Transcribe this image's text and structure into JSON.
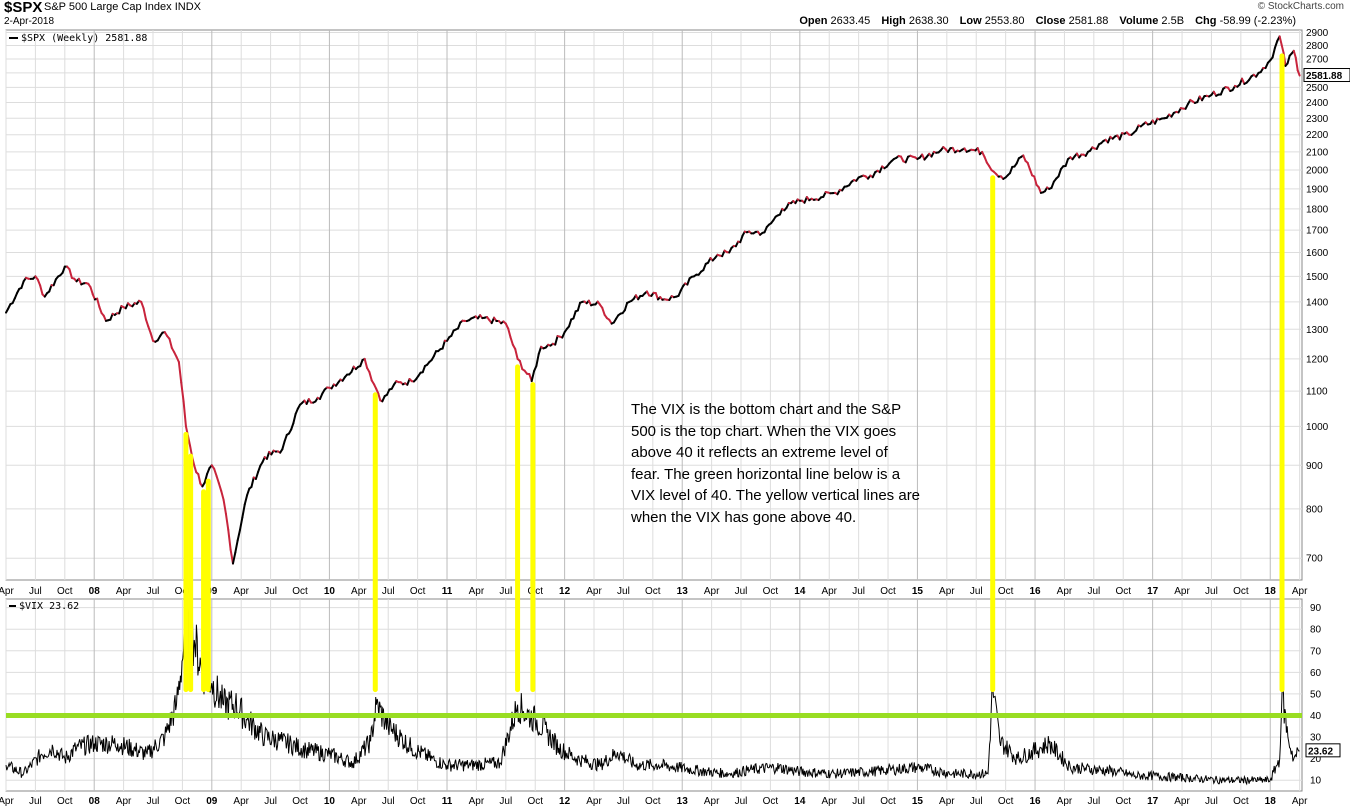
{
  "header": {
    "symbol": "$SPX",
    "name": "S&P 500 Large Cap Index",
    "exchange": "INDX",
    "date": "2-Apr-2018",
    "brand": "© StockCharts.com",
    "open_label": "Open",
    "open": "2633.45",
    "high_label": "High",
    "high": "2638.30",
    "low_label": "Low",
    "low": "2553.80",
    "close_label": "Close",
    "close": "2581.88",
    "volume_label": "Volume",
    "volume": "2.5B",
    "chg_label": "Chg",
    "chg": "-58.99 (-2.23%)"
  },
  "annotation": "The VIX is the bottom chart and the S&P 500 is the top chart.  When the VIX  goes above 40 it reflects an extreme level of fear. The green horizontal line below is a VIX level of 40. The yellow vertical lines are when the VIX has gone above 40.",
  "colors": {
    "up": "#000000",
    "down": "#c8243c",
    "yellow": "#ffff00",
    "green": "#99dd22",
    "grid": "#dddddd"
  },
  "chart_data": [
    {
      "type": "line",
      "legend": "$SPX (Weekly) 2581.88",
      "last_value": "2581.88",
      "scale": "log",
      "ylim": [
        660,
        2920
      ],
      "y_ticks": [
        700,
        800,
        900,
        1000,
        1100,
        1200,
        1300,
        1400,
        1500,
        1600,
        1700,
        1800,
        1900,
        2000,
        2100,
        2200,
        2300,
        2400,
        2500,
        2600,
        2700,
        2800,
        2900
      ],
      "x": [
        2007.25,
        2007.4,
        2007.5,
        2007.58,
        2007.75,
        2007.85,
        2007.95,
        2008.1,
        2008.25,
        2008.4,
        2008.5,
        2008.6,
        2008.72,
        2008.78,
        2008.85,
        2008.92,
        2009.0,
        2009.1,
        2009.18,
        2009.3,
        2009.45,
        2009.6,
        2009.75,
        2009.9,
        2010.0,
        2010.15,
        2010.3,
        2010.38,
        2010.45,
        2010.55,
        2010.7,
        2010.85,
        2011.0,
        2011.15,
        2011.3,
        2011.5,
        2011.6,
        2011.72,
        2011.8,
        2011.9,
        2012.0,
        2012.15,
        2012.3,
        2012.4,
        2012.55,
        2012.7,
        2012.85,
        2012.95,
        2013.1,
        2013.3,
        2013.4,
        2013.55,
        2013.7,
        2013.85,
        2014.0,
        2014.1,
        2014.3,
        2014.5,
        2014.6,
        2014.8,
        2015.0,
        2015.2,
        2015.4,
        2015.55,
        2015.65,
        2015.75,
        2015.9,
        2016.05,
        2016.12,
        2016.3,
        2016.45,
        2016.6,
        2016.8,
        2016.9,
        2017.1,
        2017.3,
        2017.5,
        2017.7,
        2017.9,
        2018.0,
        2018.08,
        2018.13,
        2018.2,
        2018.25
      ],
      "values": [
        1360,
        1480,
        1500,
        1420,
        1540,
        1480,
        1470,
        1330,
        1380,
        1400,
        1260,
        1290,
        1190,
        1000,
        900,
        850,
        900,
        820,
        690,
        830,
        920,
        940,
        1060,
        1080,
        1110,
        1150,
        1200,
        1120,
        1070,
        1120,
        1130,
        1190,
        1260,
        1330,
        1340,
        1320,
        1200,
        1130,
        1240,
        1250,
        1290,
        1400,
        1390,
        1320,
        1400,
        1440,
        1410,
        1420,
        1500,
        1590,
        1600,
        1690,
        1690,
        1800,
        1840,
        1850,
        1880,
        1960,
        1970,
        2060,
        2060,
        2110,
        2120,
        2100,
        1990,
        1960,
        2080,
        1880,
        1900,
        2070,
        2100,
        2170,
        2200,
        2250,
        2300,
        2390,
        2450,
        2510,
        2600,
        2690,
        2870,
        2650,
        2760,
        2581.88
      ]
    },
    {
      "type": "line",
      "legend": "$VIX 23.62",
      "last_value": "23.62",
      "ylim": [
        5,
        94
      ],
      "y_ticks": [
        10,
        20,
        30,
        40,
        50,
        60,
        70,
        80,
        90
      ],
      "threshold": 40,
      "x": [
        2007.25,
        2007.4,
        2007.55,
        2007.65,
        2007.75,
        2007.85,
        2008.0,
        2008.2,
        2008.45,
        2008.6,
        2008.7,
        2008.78,
        2008.85,
        2008.92,
        2009.0,
        2009.1,
        2009.2,
        2009.3,
        2009.45,
        2009.6,
        2009.8,
        2010.0,
        2010.2,
        2010.35,
        2010.4,
        2010.5,
        2010.7,
        2010.9,
        2011.0,
        2011.2,
        2011.45,
        2011.6,
        2011.65,
        2011.75,
        2011.85,
        2011.95,
        2012.1,
        2012.3,
        2012.45,
        2012.6,
        2012.8,
        2012.95,
        2013.2,
        2013.4,
        2013.6,
        2013.8,
        2014.0,
        2014.3,
        2014.6,
        2014.8,
        2015.0,
        2015.3,
        2015.6,
        2015.64,
        2015.7,
        2015.85,
        2016.05,
        2016.12,
        2016.3,
        2016.5,
        2016.7,
        2016.85,
        2017.0,
        2017.3,
        2017.6,
        2017.9,
        2018.0,
        2018.08,
        2018.1,
        2018.15,
        2018.2,
        2018.25
      ],
      "values": [
        17,
        13,
        22,
        25,
        20,
        25,
        27,
        27,
        22,
        30,
        45,
        80,
        75,
        60,
        55,
        45,
        45,
        38,
        30,
        28,
        24,
        22,
        18,
        28,
        45,
        35,
        25,
        19,
        17,
        17,
        18,
        45,
        42,
        38,
        32,
        25,
        20,
        17,
        23,
        17,
        17,
        16,
        14,
        13,
        15,
        16,
        14,
        13,
        14,
        15,
        16,
        13,
        13,
        53,
        28,
        20,
        25,
        27,
        16,
        15,
        14,
        12,
        12,
        11,
        10,
        10,
        10,
        20,
        50,
        30,
        20,
        23.62
      ]
    }
  ],
  "x_axis": {
    "ticks": [
      {
        "t": 2007.25,
        "label": "Apr"
      },
      {
        "t": 2007.5,
        "label": "Jul"
      },
      {
        "t": 2007.75,
        "label": "Oct"
      },
      {
        "t": 2008.0,
        "label": "08"
      },
      {
        "t": 2008.25,
        "label": "Apr"
      },
      {
        "t": 2008.5,
        "label": "Jul"
      },
      {
        "t": 2008.75,
        "label": "Oct"
      },
      {
        "t": 2009.0,
        "label": "09"
      },
      {
        "t": 2009.25,
        "label": "Apr"
      },
      {
        "t": 2009.5,
        "label": "Jul"
      },
      {
        "t": 2009.75,
        "label": "Oct"
      },
      {
        "t": 2010.0,
        "label": "10"
      },
      {
        "t": 2010.25,
        "label": "Apr"
      },
      {
        "t": 2010.5,
        "label": "Jul"
      },
      {
        "t": 2010.75,
        "label": "Oct"
      },
      {
        "t": 2011.0,
        "label": "11"
      },
      {
        "t": 2011.25,
        "label": "Apr"
      },
      {
        "t": 2011.5,
        "label": "Jul"
      },
      {
        "t": 2011.75,
        "label": "Oct"
      },
      {
        "t": 2012.0,
        "label": "12"
      },
      {
        "t": 2012.25,
        "label": "Apr"
      },
      {
        "t": 2012.5,
        "label": "Jul"
      },
      {
        "t": 2012.75,
        "label": "Oct"
      },
      {
        "t": 2013.0,
        "label": "13"
      },
      {
        "t": 2013.25,
        "label": "Apr"
      },
      {
        "t": 2013.5,
        "label": "Jul"
      },
      {
        "t": 2013.75,
        "label": "Oct"
      },
      {
        "t": 2014.0,
        "label": "14"
      },
      {
        "t": 2014.25,
        "label": "Apr"
      },
      {
        "t": 2014.5,
        "label": "Jul"
      },
      {
        "t": 2014.75,
        "label": "Oct"
      },
      {
        "t": 2015.0,
        "label": "15"
      },
      {
        "t": 2015.25,
        "label": "Apr"
      },
      {
        "t": 2015.5,
        "label": "Jul"
      },
      {
        "t": 2015.75,
        "label": "Oct"
      },
      {
        "t": 2016.0,
        "label": "16"
      },
      {
        "t": 2016.25,
        "label": "Apr"
      },
      {
        "t": 2016.5,
        "label": "Jul"
      },
      {
        "t": 2016.75,
        "label": "Oct"
      },
      {
        "t": 2017.0,
        "label": "17"
      },
      {
        "t": 2017.25,
        "label": "Apr"
      },
      {
        "t": 2017.5,
        "label": "Jul"
      },
      {
        "t": 2017.75,
        "label": "Oct"
      },
      {
        "t": 2018.0,
        "label": "18"
      },
      {
        "t": 2018.25,
        "label": "Apr"
      }
    ]
  },
  "highlights": [
    2008.78,
    2008.82,
    2008.93,
    2008.97,
    2010.39,
    2011.6,
    2011.73,
    2015.64,
    2018.1
  ]
}
